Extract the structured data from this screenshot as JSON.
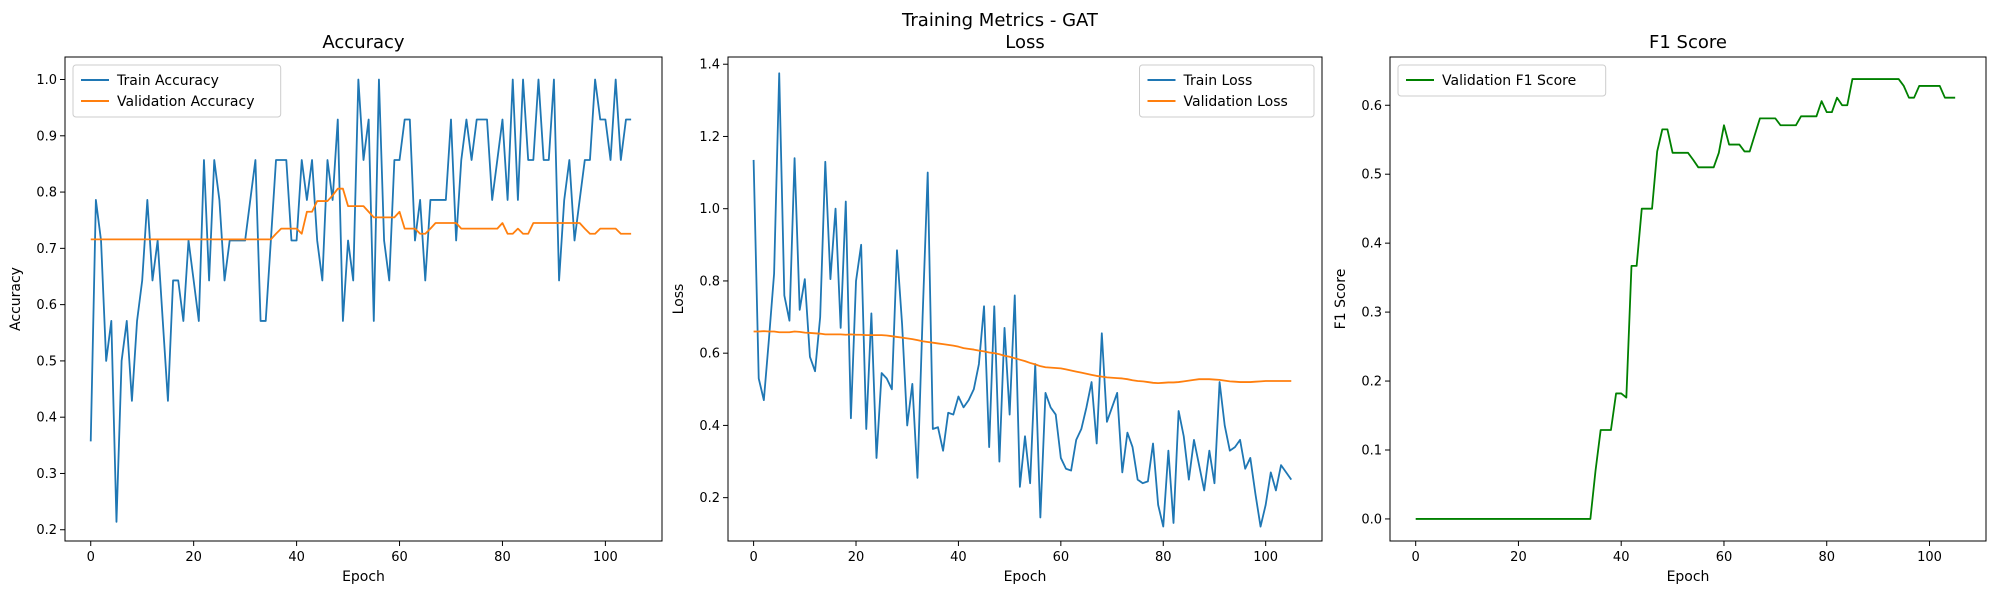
{
  "figure": {
    "title": "Training Metrics - GAT"
  },
  "chart_data": [
    {
      "type": "line",
      "title": "Accuracy",
      "xlabel": "Epoch",
      "ylabel": "Accuracy",
      "xlim": [
        -5,
        111
      ],
      "ylim": [
        0.18,
        1.04
      ],
      "xticks": [
        0,
        20,
        40,
        60,
        80,
        100
      ],
      "yticks": [
        0.2,
        0.3,
        0.4,
        0.5,
        0.6,
        0.7,
        0.8,
        0.9,
        1.0
      ],
      "xticklabels": [
        "0",
        "20",
        "40",
        "60",
        "80",
        "100"
      ],
      "yticklabels": [
        "0.2",
        "0.3",
        "0.4",
        "0.5",
        "0.6",
        "0.7",
        "0.8",
        "0.9",
        "1.0"
      ],
      "legend_position": "top-left",
      "grid": false,
      "series": [
        {
          "name": "Train Accuracy",
          "color": "#1f77b4",
          "y": [
            0.357,
            0.786,
            0.714,
            0.5,
            0.571,
            0.214,
            0.5,
            0.571,
            0.429,
            0.571,
            0.643,
            0.786,
            0.643,
            0.714,
            0.571,
            0.429,
            0.643,
            0.643,
            0.571,
            0.714,
            0.643,
            0.571,
            0.857,
            0.643,
            0.857,
            0.786,
            0.643,
            0.714,
            0.714,
            0.714,
            0.714,
            0.786,
            0.857,
            0.571,
            0.571,
            0.714,
            0.857,
            0.857,
            0.857,
            0.714,
            0.714,
            0.857,
            0.786,
            0.857,
            0.714,
            0.643,
            0.857,
            0.786,
            0.929,
            0.571,
            0.714,
            0.643,
            1.0,
            0.857,
            0.929,
            0.571,
            1.0,
            0.714,
            0.643,
            0.857,
            0.857,
            0.929,
            0.929,
            0.714,
            0.786,
            0.643,
            0.786,
            0.786,
            0.786,
            0.786,
            0.929,
            0.714,
            0.857,
            0.929,
            0.857,
            0.929,
            0.929,
            0.929,
            0.786,
            0.857,
            0.929,
            0.786,
            1.0,
            0.786,
            1.0,
            0.857,
            0.857,
            1.0,
            0.857,
            0.857,
            1.0,
            0.643,
            0.786,
            0.857,
            0.714,
            0.786,
            0.857,
            0.857,
            1.0,
            0.929,
            0.929,
            0.857,
            1.0,
            0.857,
            0.929,
            0.929
          ]
        },
        {
          "name": "Validation Accuracy",
          "color": "#ff7f0e",
          "y": [
            0.716,
            0.716,
            0.716,
            0.716,
            0.716,
            0.716,
            0.716,
            0.716,
            0.716,
            0.716,
            0.716,
            0.716,
            0.716,
            0.716,
            0.716,
            0.716,
            0.716,
            0.716,
            0.716,
            0.716,
            0.716,
            0.716,
            0.716,
            0.716,
            0.716,
            0.716,
            0.716,
            0.716,
            0.716,
            0.716,
            0.716,
            0.716,
            0.716,
            0.716,
            0.716,
            0.716,
            0.726,
            0.735,
            0.735,
            0.735,
            0.735,
            0.726,
            0.765,
            0.765,
            0.784,
            0.784,
            0.784,
            0.794,
            0.806,
            0.806,
            0.775,
            0.775,
            0.775,
            0.775,
            0.765,
            0.755,
            0.755,
            0.755,
            0.755,
            0.755,
            0.765,
            0.735,
            0.735,
            0.735,
            0.726,
            0.726,
            0.735,
            0.745,
            0.745,
            0.745,
            0.745,
            0.745,
            0.735,
            0.735,
            0.735,
            0.735,
            0.735,
            0.735,
            0.735,
            0.735,
            0.745,
            0.726,
            0.726,
            0.735,
            0.726,
            0.726,
            0.745,
            0.745,
            0.745,
            0.745,
            0.745,
            0.745,
            0.745,
            0.745,
            0.745,
            0.745,
            0.735,
            0.726,
            0.726,
            0.735,
            0.735,
            0.735,
            0.735,
            0.726,
            0.726,
            0.726
          ]
        }
      ]
    },
    {
      "type": "line",
      "title": "Loss",
      "xlabel": "Epoch",
      "ylabel": "Loss",
      "xlim": [
        -5,
        111
      ],
      "ylim": [
        0.08,
        1.42
      ],
      "xticks": [
        0,
        20,
        40,
        60,
        80,
        100
      ],
      "yticks": [
        0.2,
        0.4,
        0.6,
        0.8,
        1.0,
        1.2,
        1.4
      ],
      "xticklabels": [
        "0",
        "20",
        "40",
        "60",
        "80",
        "100"
      ],
      "yticklabels": [
        "0.2",
        "0.4",
        "0.6",
        "0.8",
        "1.0",
        "1.2",
        "1.4"
      ],
      "legend_position": "top-right",
      "grid": false,
      "series": [
        {
          "name": "Train Loss",
          "color": "#1f77b4",
          "y": [
            1.135,
            0.53,
            0.47,
            0.64,
            0.82,
            1.375,
            0.76,
            0.69,
            1.14,
            0.72,
            0.805,
            0.59,
            0.55,
            0.7,
            1.13,
            0.805,
            1.0,
            0.67,
            1.02,
            0.42,
            0.8,
            0.9,
            0.39,
            0.71,
            0.31,
            0.545,
            0.53,
            0.5,
            0.885,
            0.68,
            0.4,
            0.515,
            0.255,
            0.7,
            1.1,
            0.39,
            0.395,
            0.33,
            0.435,
            0.43,
            0.48,
            0.45,
            0.47,
            0.5,
            0.57,
            0.73,
            0.34,
            0.73,
            0.3,
            0.67,
            0.43,
            0.76,
            0.23,
            0.37,
            0.24,
            0.57,
            0.145,
            0.49,
            0.45,
            0.43,
            0.31,
            0.28,
            0.275,
            0.36,
            0.39,
            0.45,
            0.52,
            0.35,
            0.655,
            0.41,
            0.45,
            0.49,
            0.27,
            0.38,
            0.34,
            0.25,
            0.24,
            0.245,
            0.35,
            0.18,
            0.12,
            0.33,
            0.13,
            0.44,
            0.37,
            0.25,
            0.36,
            0.29,
            0.22,
            0.33,
            0.24,
            0.52,
            0.4,
            0.33,
            0.34,
            0.36,
            0.28,
            0.31,
            0.21,
            0.12,
            0.18,
            0.27,
            0.22,
            0.29,
            0.27,
            0.25
          ]
        },
        {
          "name": "Validation Loss",
          "color": "#ff7f0e",
          "y": [
            0.66,
            0.66,
            0.661,
            0.66,
            0.66,
            0.658,
            0.658,
            0.658,
            0.66,
            0.659,
            0.657,
            0.656,
            0.655,
            0.654,
            0.652,
            0.652,
            0.652,
            0.652,
            0.651,
            0.652,
            0.651,
            0.651,
            0.65,
            0.65,
            0.65,
            0.65,
            0.649,
            0.647,
            0.645,
            0.643,
            0.641,
            0.639,
            0.636,
            0.633,
            0.631,
            0.629,
            0.627,
            0.625,
            0.623,
            0.621,
            0.618,
            0.614,
            0.612,
            0.61,
            0.607,
            0.605,
            0.602,
            0.6,
            0.597,
            0.593,
            0.59,
            0.586,
            0.582,
            0.578,
            0.573,
            0.569,
            0.564,
            0.561,
            0.56,
            0.559,
            0.558,
            0.555,
            0.552,
            0.549,
            0.546,
            0.543,
            0.54,
            0.537,
            0.535,
            0.533,
            0.532,
            0.531,
            0.53,
            0.528,
            0.525,
            0.523,
            0.522,
            0.52,
            0.518,
            0.517,
            0.518,
            0.519,
            0.519,
            0.52,
            0.522,
            0.524,
            0.526,
            0.528,
            0.528,
            0.528,
            0.527,
            0.526,
            0.524,
            0.522,
            0.521,
            0.52,
            0.52,
            0.52,
            0.521,
            0.522,
            0.523,
            0.523,
            0.523,
            0.523,
            0.523,
            0.523
          ]
        }
      ]
    },
    {
      "type": "line",
      "title": "F1 Score",
      "xlabel": "Epoch",
      "ylabel": "F1 Score",
      "xlim": [
        -5,
        111
      ],
      "ylim": [
        -0.032,
        0.67
      ],
      "xticks": [
        0,
        20,
        40,
        60,
        80,
        100
      ],
      "yticks": [
        0.0,
        0.1,
        0.2,
        0.3,
        0.4,
        0.5,
        0.6
      ],
      "xticklabels": [
        "0",
        "20",
        "40",
        "60",
        "80",
        "100"
      ],
      "yticklabels": [
        "0.0",
        "0.1",
        "0.2",
        "0.3",
        "0.4",
        "0.5",
        "0.6"
      ],
      "legend_position": "top-left",
      "grid": false,
      "series": [
        {
          "name": "Validation F1 Score",
          "color": "#008000",
          "y": [
            0,
            0,
            0,
            0,
            0,
            0,
            0,
            0,
            0,
            0,
            0,
            0,
            0,
            0,
            0,
            0,
            0,
            0,
            0,
            0,
            0,
            0,
            0,
            0,
            0,
            0,
            0,
            0,
            0,
            0,
            0,
            0,
            0,
            0,
            0,
            0.07,
            0.129,
            0.129,
            0.129,
            0.182,
            0.182,
            0.176,
            0.367,
            0.367,
            0.45,
            0.45,
            0.45,
            0.533,
            0.565,
            0.565,
            0.531,
            0.531,
            0.531,
            0.531,
            0.521,
            0.51,
            0.51,
            0.51,
            0.51,
            0.531,
            0.571,
            0.543,
            0.543,
            0.543,
            0.533,
            0.533,
            0.557,
            0.581,
            0.581,
            0.581,
            0.581,
            0.571,
            0.571,
            0.571,
            0.571,
            0.584,
            0.584,
            0.584,
            0.584,
            0.606,
            0.59,
            0.59,
            0.611,
            0.6,
            0.6,
            0.638,
            0.638,
            0.638,
            0.638,
            0.638,
            0.638,
            0.638,
            0.638,
            0.638,
            0.638,
            0.628,
            0.611,
            0.611,
            0.628,
            0.628,
            0.628,
            0.628,
            0.628,
            0.611,
            0.611,
            0.611
          ]
        }
      ]
    }
  ]
}
